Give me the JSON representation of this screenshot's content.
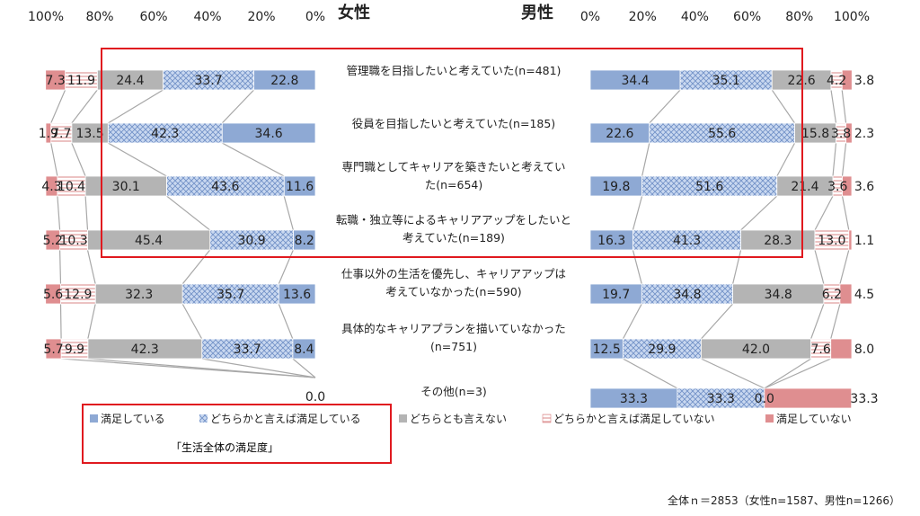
{
  "chart_data": {
    "type": "bar",
    "stacked": true,
    "orientation": "horizontal",
    "legend_placement": "bottom",
    "female": {
      "title": "女性",
      "axis_ticks": [
        "100%",
        "80%",
        "60%",
        "40%",
        "20%",
        "0%"
      ],
      "xlim": [
        100,
        0
      ]
    },
    "male": {
      "title": "男性",
      "axis_ticks": [
        "0%",
        "20%",
        "40%",
        "60%",
        "80%",
        "100%"
      ],
      "xlim": [
        0,
        100
      ]
    },
    "categories": [
      "管理職を目指したいと考えていた(n=481)",
      "役員を目指したいと考えていた(n=185)",
      "専門職としてキャリアを築きたいと考えていた(n=654)",
      "転職・独立等によるキャリアアップをしたいと考えていた(n=189)",
      "仕事以外の生活を優先し、キャリアアップは考えていなかった(n=590)",
      "具体的なキャリアプランを描いていなかった(n=751)",
      "その他(n=3)"
    ],
    "category_lines": [
      [
        "管理職を目指したいと考えていた(n=481)"
      ],
      [
        "役員を目指したいと考えていた(n=185)"
      ],
      [
        "専門職としてキャリアを築きたいと考えてい",
        "た(n=654)"
      ],
      [
        "転職・独立等によるキャリアアップをしたいと",
        "考えていた(n=189)"
      ],
      [
        "仕事以外の生活を優先し、キャリアアップは",
        "考えていなかった(n=590)"
      ],
      [
        "具体的なキャリアプランを描いていなかった",
        "(n=751)"
      ],
      [
        "その他(n=3)"
      ]
    ],
    "series": [
      {
        "name": "満足している",
        "color": "#8EA9D4",
        "pattern": "solid",
        "female": [
          22.8,
          34.6,
          11.6,
          8.2,
          13.6,
          8.4,
          0
        ],
        "male": [
          34.4,
          22.6,
          19.8,
          16.3,
          19.7,
          12.5,
          33.3
        ]
      },
      {
        "name": "どちらかと言えば満足している",
        "color": "#A9C0E6",
        "pattern": "crosshatch",
        "female": [
          33.7,
          42.3,
          43.6,
          30.9,
          35.7,
          33.7,
          0
        ],
        "male": [
          35.1,
          55.6,
          51.6,
          41.3,
          34.8,
          29.9,
          33.3
        ]
      },
      {
        "name": "どちらとも言えない",
        "color": "#B4B4B4",
        "pattern": "solid",
        "female": [
          24.4,
          13.5,
          30.1,
          45.4,
          32.3,
          42.3,
          0
        ],
        "male": [
          22.6,
          15.8,
          21.4,
          28.3,
          34.8,
          42.0,
          0.0
        ]
      },
      {
        "name": "どちらかと言えば満足していない",
        "color": "#E7A5A7",
        "pattern": "hlines",
        "female": [
          11.9,
          7.7,
          10.4,
          10.3,
          12.9,
          9.9,
          0
        ],
        "male": [
          4.2,
          3.8,
          3.6,
          13.0,
          6.2,
          7.6,
          0
        ]
      },
      {
        "name": "満足していない",
        "color": "#DF8E90",
        "pattern": "solid",
        "female": [
          7.3,
          1.9,
          4.3,
          5.2,
          5.6,
          5.7,
          0
        ],
        "male": [
          3.8,
          2.3,
          3.6,
          1.1,
          4.5,
          8.0,
          33.3
        ]
      }
    ],
    "female_labels": [
      [
        "22.8",
        "33.7",
        "24.4",
        "11.9",
        "7.3"
      ],
      [
        "34.6",
        "42.3",
        "13.5",
        "7.7",
        "1.9"
      ],
      [
        "11.6",
        "43.6",
        "30.1",
        "10.4",
        "4.3"
      ],
      [
        "8.2",
        "30.9",
        "45.4",
        "10.3",
        "5.2"
      ],
      [
        "13.6",
        "35.7",
        "32.3",
        "12.9",
        "5.6"
      ],
      [
        "8.4",
        "33.7",
        "42.3",
        "9.9",
        "5.7"
      ],
      [
        "0.0"
      ]
    ],
    "male_labels": [
      [
        "34.4",
        "35.1",
        "22.6",
        "4.2",
        "3.8"
      ],
      [
        "22.6",
        "55.6",
        "15.8",
        "3.8",
        "2.3"
      ],
      [
        "19.8",
        "51.6",
        "21.4",
        "3.6",
        "3.6"
      ],
      [
        "16.3",
        "41.3",
        "28.3",
        "13.0",
        "1.1"
      ],
      [
        "19.7",
        "34.8",
        "34.8",
        "6.2",
        "4.5"
      ],
      [
        "12.5",
        "29.9",
        "42.0",
        "7.6",
        "8.0"
      ],
      [
        "33.3",
        "33.3",
        "0.0",
        "",
        "33.3"
      ]
    ],
    "highlight_box_rows": [
      0,
      3
    ],
    "caption": "「生活全体の満足度」"
  },
  "footnote": "全体ｎ＝2853（女性n=1587、男性n=1266）"
}
